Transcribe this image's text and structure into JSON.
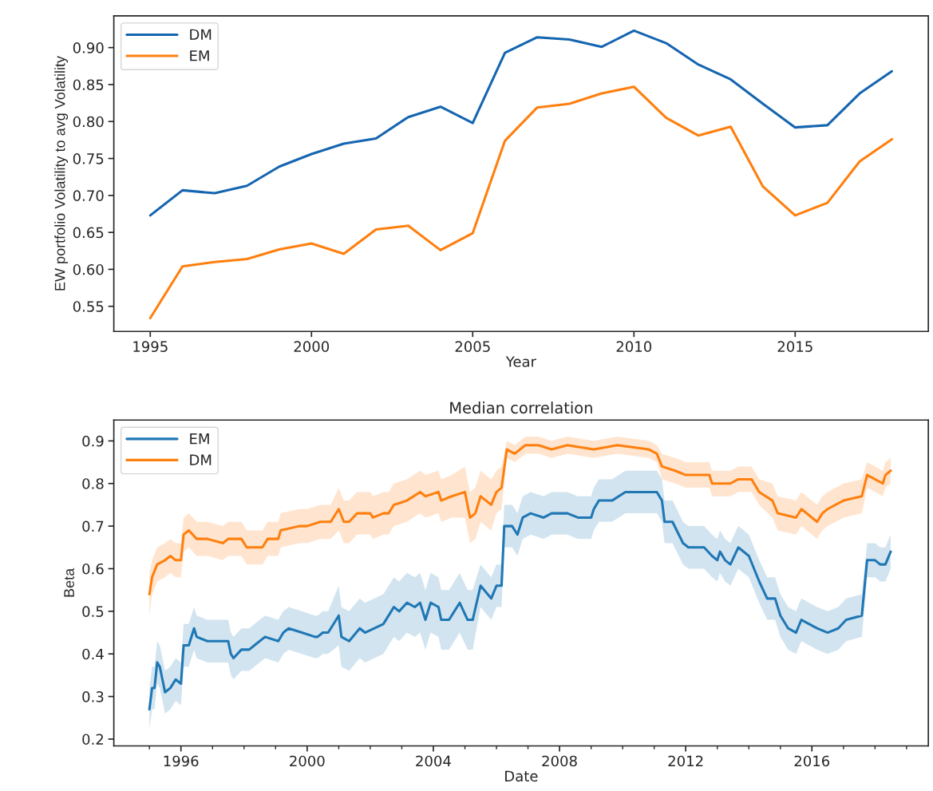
{
  "chart_data": [
    {
      "type": "line",
      "xlabel": "Year",
      "ylabel": "EW portfolio Volatility to avg Volatility",
      "legend": "top left",
      "grid": false,
      "x": [
        1995,
        1996,
        1997,
        1998,
        1999,
        2000,
        2001,
        2002,
        2003,
        2004,
        2005,
        2006,
        2007,
        2008,
        2009,
        2010,
        2011,
        2012,
        2013,
        2014,
        2015,
        2016,
        2017,
        2018
      ],
      "xlim": [
        1993.87,
        2019.13
      ],
      "xticks": [
        1995,
        2000,
        2005,
        2010,
        2015
      ],
      "ylim": [
        0.516,
        0.943
      ],
      "yticks": [
        0.55,
        {
          "value": 0.6,
          "label": "0.60"
        },
        0.65,
        {
          "value": 0.7,
          "label": "0.70"
        },
        0.75,
        {
          "value": 0.8,
          "label": "0.80"
        },
        0.85,
        {
          "value": 0.9,
          "label": "0.90"
        }
      ],
      "series": [
        {
          "name": "DM",
          "color": "#1565b0",
          "values": [
            0.673,
            0.707,
            0.703,
            0.713,
            0.739,
            0.756,
            0.77,
            0.777,
            0.806,
            0.82,
            0.798,
            0.893,
            0.914,
            0.911,
            0.901,
            0.923,
            0.906,
            0.877,
            0.857,
            0.824,
            0.792,
            0.795,
            0.838,
            0.868
          ]
        },
        {
          "name": "EM",
          "color": "#ff7f0e",
          "values": [
            0.534,
            0.604,
            0.61,
            0.614,
            0.627,
            0.635,
            0.621,
            0.654,
            0.659,
            0.626,
            0.649,
            0.774,
            0.819,
            0.824,
            0.838,
            0.847,
            0.805,
            0.781,
            0.793,
            0.712,
            0.673,
            0.69,
            0.746,
            0.776
          ]
        }
      ]
    },
    {
      "type": "line",
      "title": "Median correlation",
      "xlabel": "Date",
      "ylabel": "Beta",
      "legend": "top left",
      "grid": false,
      "xlim": [
        "1993-11-15",
        "2019-09-10"
      ],
      "xticks": [
        {
          "value": "1995",
          "label": null
        },
        "1996",
        {
          "value": "1997",
          "label": null
        },
        {
          "value": "1998",
          "label": null
        },
        {
          "value": "1999",
          "label": null
        },
        "2000",
        {
          "value": "2001",
          "label": null
        },
        {
          "value": "2002",
          "label": null
        },
        {
          "value": "2003",
          "label": null
        },
        "2004",
        {
          "value": "2005",
          "label": null
        },
        {
          "value": "2006",
          "label": null
        },
        {
          "value": "2007",
          "label": null
        },
        "2008",
        {
          "value": "2009",
          "label": null
        },
        {
          "value": "2010",
          "label": null
        },
        {
          "value": "2011",
          "label": null
        },
        "2012",
        {
          "value": "2013",
          "label": null
        },
        {
          "value": "2014",
          "label": null
        },
        {
          "value": "2015",
          "label": null
        },
        "2016",
        {
          "value": "2017",
          "label": null
        },
        {
          "value": "2018",
          "label": null
        },
        {
          "value": "2019",
          "label": null
        }
      ],
      "ylim": [
        0.184,
        0.949
      ],
      "yticks": [
        0.2,
        0.3,
        0.4,
        0.5,
        0.6,
        0.7,
        0.8,
        0.9
      ],
      "series": [
        {
          "name": "EM",
          "color": "#1f77b4",
          "x": [
            "1995-01",
            "1995-02",
            "1995-03",
            "1995-04",
            "1995-05",
            "1995-07",
            "1995-09",
            "1995-11",
            "1996-01",
            "1996-02",
            "1996-04",
            "1996-06",
            "1996-07",
            "1996-11",
            "1997-03",
            "1997-07",
            "1997-08",
            "1997-09",
            "1997-12",
            "1998-03",
            "1998-05",
            "1998-09",
            "1999-02",
            "1999-04",
            "1999-06",
            "1999-11",
            "2000-04",
            "2000-05",
            "2000-07",
            "2000-09",
            "2001-01",
            "2001-02",
            "2001-05",
            "2001-09",
            "2001-11",
            "2002-06",
            "2002-10",
            "2002-12",
            "2003-03",
            "2003-06",
            "2003-08",
            "2003-10",
            "2003-12",
            "2004-03",
            "2004-04",
            "2004-07",
            "2004-11",
            "2005-02",
            "2005-04",
            "2005-07",
            "2005-11",
            "2006-01",
            "2006-03",
            "2006-04",
            "2006-07",
            "2006-09",
            "2006-11",
            "2007-02",
            "2007-07",
            "2007-10",
            "2008-04",
            "2008-08",
            "2009-01",
            "2009-02",
            "2009-04",
            "2009-09",
            "2010-02",
            "2010-07",
            "2011-02",
            "2011-04",
            "2011-05",
            "2011-08",
            "2011-12",
            "2012-02",
            "2012-08",
            "2012-11",
            "2013-01",
            "2013-02",
            "2013-04",
            "2013-06",
            "2013-09",
            "2014-01",
            "2014-05",
            "2014-08",
            "2014-11",
            "2015-01",
            "2015-04",
            "2015-07",
            "2015-09",
            "2015-12",
            "2016-03",
            "2016-07",
            "2016-11",
            "2017-02",
            "2017-08",
            "2017-10",
            "2018-01",
            "2018-03",
            "2018-05",
            "2018-07"
          ],
          "values": [
            0.27,
            0.32,
            0.32,
            0.38,
            0.37,
            0.31,
            0.32,
            0.34,
            0.33,
            0.42,
            0.42,
            0.46,
            0.44,
            0.43,
            0.43,
            0.43,
            0.4,
            0.39,
            0.41,
            0.41,
            0.42,
            0.44,
            0.43,
            0.45,
            0.46,
            0.45,
            0.44,
            0.44,
            0.45,
            0.45,
            0.49,
            0.44,
            0.43,
            0.46,
            0.45,
            0.47,
            0.51,
            0.5,
            0.52,
            0.51,
            0.52,
            0.48,
            0.52,
            0.51,
            0.48,
            0.48,
            0.52,
            0.48,
            0.48,
            0.56,
            0.53,
            0.56,
            0.56,
            0.7,
            0.7,
            0.68,
            0.72,
            0.73,
            0.72,
            0.73,
            0.73,
            0.72,
            0.72,
            0.74,
            0.76,
            0.76,
            0.78,
            0.78,
            0.78,
            0.76,
            0.71,
            0.71,
            0.66,
            0.65,
            0.65,
            0.63,
            0.62,
            0.64,
            0.62,
            0.61,
            0.65,
            0.63,
            0.57,
            0.53,
            0.53,
            0.49,
            0.46,
            0.45,
            0.48,
            0.47,
            0.46,
            0.45,
            0.46,
            0.48,
            0.49,
            0.62,
            0.62,
            0.61,
            0.61,
            0.64
          ],
          "lower": [
            0.22,
            0.27,
            0.27,
            0.33,
            0.32,
            0.26,
            0.27,
            0.29,
            0.28,
            0.37,
            0.37,
            0.41,
            0.39,
            0.38,
            0.38,
            0.38,
            0.35,
            0.34,
            0.36,
            0.36,
            0.37,
            0.39,
            0.38,
            0.4,
            0.41,
            0.4,
            0.39,
            0.39,
            0.4,
            0.4,
            0.42,
            0.37,
            0.36,
            0.39,
            0.38,
            0.4,
            0.44,
            0.43,
            0.45,
            0.44,
            0.45,
            0.41,
            0.45,
            0.44,
            0.41,
            0.41,
            0.45,
            0.41,
            0.41,
            0.51,
            0.48,
            0.51,
            0.51,
            0.65,
            0.65,
            0.63,
            0.67,
            0.68,
            0.67,
            0.68,
            0.68,
            0.67,
            0.67,
            0.69,
            0.71,
            0.71,
            0.73,
            0.73,
            0.73,
            0.71,
            0.66,
            0.66,
            0.61,
            0.6,
            0.6,
            0.58,
            0.57,
            0.59,
            0.57,
            0.56,
            0.6,
            0.58,
            0.52,
            0.48,
            0.48,
            0.44,
            0.41,
            0.4,
            0.43,
            0.42,
            0.41,
            0.4,
            0.41,
            0.43,
            0.44,
            0.58,
            0.58,
            0.57,
            0.57,
            0.6
          ],
          "upper": [
            0.32,
            0.37,
            0.37,
            0.43,
            0.42,
            0.36,
            0.37,
            0.39,
            0.38,
            0.47,
            0.47,
            0.51,
            0.49,
            0.48,
            0.48,
            0.48,
            0.45,
            0.44,
            0.46,
            0.46,
            0.47,
            0.49,
            0.48,
            0.5,
            0.51,
            0.5,
            0.49,
            0.49,
            0.5,
            0.5,
            0.56,
            0.51,
            0.5,
            0.53,
            0.52,
            0.54,
            0.58,
            0.57,
            0.59,
            0.58,
            0.59,
            0.55,
            0.59,
            0.58,
            0.55,
            0.55,
            0.59,
            0.55,
            0.55,
            0.61,
            0.58,
            0.61,
            0.61,
            0.75,
            0.75,
            0.73,
            0.77,
            0.78,
            0.77,
            0.78,
            0.78,
            0.77,
            0.77,
            0.79,
            0.81,
            0.81,
            0.83,
            0.83,
            0.83,
            0.81,
            0.76,
            0.76,
            0.71,
            0.7,
            0.7,
            0.68,
            0.67,
            0.69,
            0.67,
            0.66,
            0.7,
            0.68,
            0.62,
            0.58,
            0.58,
            0.54,
            0.51,
            0.5,
            0.53,
            0.52,
            0.51,
            0.5,
            0.51,
            0.53,
            0.54,
            0.66,
            0.66,
            0.65,
            0.65,
            0.68
          ]
        },
        {
          "name": "DM",
          "color": "#ff7f0e",
          "x": [
            "1995-01",
            "1995-02",
            "1995-04",
            "1995-07",
            "1995-09",
            "1995-11",
            "1996-01",
            "1996-02",
            "1996-04",
            "1996-07",
            "1996-11",
            "1997-05",
            "1997-07",
            "1997-12",
            "1998-02",
            "1998-08",
            "1998-10",
            "1999-02",
            "1999-03",
            "1999-10",
            "2000-01",
            "2000-06",
            "2000-10",
            "2001-01",
            "2001-03",
            "2001-05",
            "2001-08",
            "2002-01",
            "2002-02",
            "2002-06",
            "2002-08",
            "2002-10",
            "2003-03",
            "2003-08",
            "2003-10",
            "2004-03",
            "2004-04",
            "2004-08",
            "2005-01",
            "2005-03",
            "2005-05",
            "2005-07",
            "2005-11",
            "2006-01",
            "2006-03",
            "2006-05",
            "2006-08",
            "2006-12",
            "2007-05",
            "2007-10",
            "2008-04",
            "2009-02",
            "2009-11",
            "2010-11",
            "2011-02",
            "2011-04",
            "2011-09",
            "2012-01",
            "2012-10",
            "2012-11",
            "2013-06",
            "2013-09",
            "2014-02",
            "2014-05",
            "2014-10",
            "2014-12",
            "2015-07",
            "2015-09",
            "2016-03",
            "2016-05",
            "2016-07",
            "2017-01",
            "2017-08",
            "2017-10",
            "2018-04",
            "2018-05",
            "2018-07"
          ],
          "values": [
            0.54,
            0.58,
            0.61,
            0.62,
            0.63,
            0.62,
            0.62,
            0.68,
            0.69,
            0.67,
            0.67,
            0.66,
            0.67,
            0.67,
            0.65,
            0.65,
            0.67,
            0.67,
            0.69,
            0.7,
            0.7,
            0.71,
            0.71,
            0.74,
            0.71,
            0.71,
            0.73,
            0.73,
            0.72,
            0.73,
            0.73,
            0.75,
            0.76,
            0.78,
            0.77,
            0.78,
            0.76,
            0.77,
            0.78,
            0.72,
            0.73,
            0.77,
            0.75,
            0.78,
            0.79,
            0.88,
            0.87,
            0.89,
            0.89,
            0.88,
            0.89,
            0.88,
            0.89,
            0.88,
            0.87,
            0.84,
            0.83,
            0.82,
            0.82,
            0.8,
            0.8,
            0.81,
            0.81,
            0.78,
            0.76,
            0.73,
            0.72,
            0.74,
            0.71,
            0.73,
            0.74,
            0.76,
            0.77,
            0.82,
            0.8,
            0.82,
            0.83
          ],
          "lower": [
            0.49,
            0.54,
            0.57,
            0.58,
            0.59,
            0.58,
            0.58,
            0.64,
            0.65,
            0.63,
            0.63,
            0.62,
            0.63,
            0.63,
            0.61,
            0.61,
            0.63,
            0.63,
            0.65,
            0.66,
            0.66,
            0.67,
            0.67,
            0.69,
            0.66,
            0.66,
            0.68,
            0.68,
            0.67,
            0.68,
            0.68,
            0.7,
            0.71,
            0.73,
            0.72,
            0.73,
            0.71,
            0.72,
            0.72,
            0.66,
            0.67,
            0.71,
            0.69,
            0.73,
            0.74,
            0.86,
            0.85,
            0.87,
            0.87,
            0.86,
            0.87,
            0.86,
            0.87,
            0.86,
            0.85,
            0.81,
            0.8,
            0.79,
            0.79,
            0.77,
            0.77,
            0.78,
            0.78,
            0.75,
            0.72,
            0.69,
            0.68,
            0.7,
            0.67,
            0.69,
            0.7,
            0.72,
            0.73,
            0.79,
            0.77,
            0.79,
            0.8
          ],
          "upper": [
            0.59,
            0.62,
            0.65,
            0.66,
            0.67,
            0.66,
            0.66,
            0.72,
            0.73,
            0.71,
            0.71,
            0.7,
            0.71,
            0.71,
            0.69,
            0.69,
            0.71,
            0.71,
            0.73,
            0.74,
            0.74,
            0.75,
            0.75,
            0.79,
            0.76,
            0.76,
            0.78,
            0.78,
            0.77,
            0.78,
            0.78,
            0.8,
            0.81,
            0.83,
            0.82,
            0.83,
            0.81,
            0.82,
            0.84,
            0.78,
            0.79,
            0.83,
            0.81,
            0.83,
            0.84,
            0.9,
            0.89,
            0.91,
            0.91,
            0.9,
            0.91,
            0.9,
            0.91,
            0.9,
            0.89,
            0.87,
            0.86,
            0.85,
            0.85,
            0.83,
            0.83,
            0.84,
            0.84,
            0.81,
            0.8,
            0.77,
            0.76,
            0.78,
            0.75,
            0.77,
            0.78,
            0.8,
            0.81,
            0.85,
            0.83,
            0.85,
            0.86
          ]
        }
      ]
    }
  ]
}
